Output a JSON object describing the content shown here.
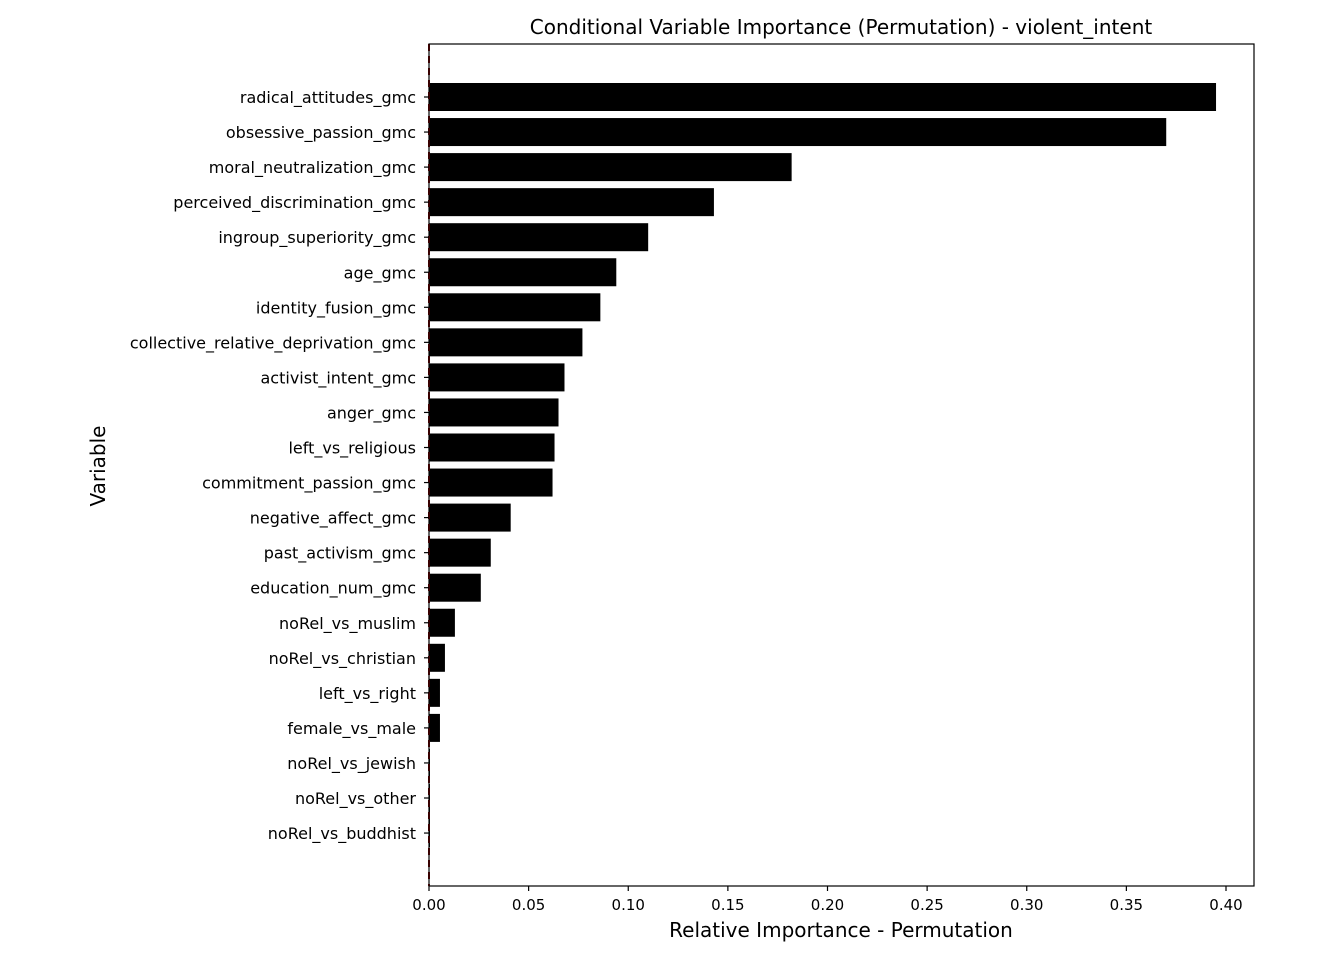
{
  "chart_data": {
    "type": "bar",
    "orientation": "horizontal",
    "title": "Conditional Variable Importance (Permutation) - violent_intent",
    "xlabel": "Relative Importance - Permutation",
    "ylabel": "Variable",
    "xlim": [
      0,
      0.415
    ],
    "xticks": [
      "0.00",
      "0.05",
      "0.10",
      "0.15",
      "0.20",
      "0.25",
      "0.30",
      "0.35",
      "0.40"
    ],
    "categories": [
      "radical_attitudes_gmc",
      "obsessive_passion_gmc",
      "moral_neutralization_gmc",
      "perceived_discrimination_gmc",
      "ingroup_superiority_gmc",
      "age_gmc",
      "identity_fusion_gmc",
      "collective_relative_deprivation_gmc",
      "activist_intent_gmc",
      "anger_gmc",
      "left_vs_religious",
      "commitment_passion_gmc",
      "negative_affect_gmc",
      "past_activism_gmc",
      "education_num_gmc",
      "noRel_vs_muslim",
      "noRel_vs_christian",
      "left_vs_right",
      "female_vs_male",
      "noRel_vs_jewish",
      "noRel_vs_other",
      "noRel_vs_buddhist"
    ],
    "values": [
      0.395,
      0.37,
      0.182,
      0.143,
      0.11,
      0.094,
      0.086,
      0.077,
      0.068,
      0.065,
      0.063,
      0.062,
      0.041,
      0.031,
      0.026,
      0.013,
      0.008,
      0.0055,
      0.0055,
      0.0005,
      0.0005,
      0.0005
    ],
    "bar_color": "#000000",
    "reference_line": {
      "x": 0,
      "style": "dashed",
      "color": "#8b0000"
    },
    "grid": false
  }
}
